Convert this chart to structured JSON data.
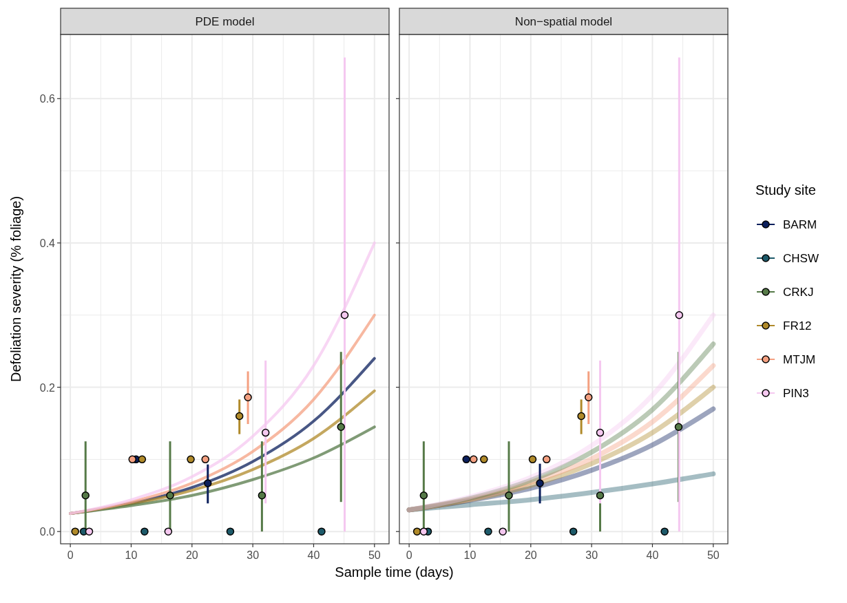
{
  "chart_data": [
    {
      "type": "scatter",
      "title": "PDE model",
      "xlabel": "Sample time (days)",
      "ylabel": "Defoliation severity (% foliage)",
      "xlim": [
        -1.6,
        52.4
      ],
      "ylim": [
        -0.017,
        0.689
      ],
      "xticks": [
        0,
        10,
        20,
        30,
        40,
        50
      ],
      "yticks": [
        {
          "value": 0,
          "label": "0.0"
        },
        0.2,
        0.4,
        0.6
      ],
      "grid": true,
      "marker": "circle",
      "series": [
        {
          "type": "line",
          "marker": "none",
          "color": "#0b1f5c",
          "x": [
            0,
            10,
            20,
            30,
            40,
            50
          ],
          "values": [
            0.025,
            0.039,
            0.061,
            0.097,
            0.153,
            0.24
          ]
        },
        {
          "type": "line",
          "marker": "none",
          "color": "#b08a2a",
          "x": [
            0,
            10,
            20,
            30,
            40,
            50
          ],
          "values": [
            0.025,
            0.038,
            0.057,
            0.086,
            0.129,
            0.195
          ]
        },
        {
          "type": "line",
          "marker": "none",
          "color": "#567a48",
          "x": [
            0,
            10,
            20,
            30,
            40,
            50
          ],
          "values": [
            0.025,
            0.036,
            0.05,
            0.072,
            0.102,
            0.145
          ]
        },
        {
          "type": "line",
          "marker": "none",
          "color": "#f4a081",
          "x": [
            0,
            10,
            20,
            30,
            40,
            50
          ],
          "values": [
            0.025,
            0.041,
            0.067,
            0.111,
            0.183,
            0.3
          ]
        },
        {
          "type": "line",
          "marker": "none",
          "color": "#f5c8f0",
          "x": [
            0,
            10,
            20,
            30,
            40,
            50
          ],
          "values": [
            0.025,
            0.044,
            0.076,
            0.132,
            0.23,
            0.4
          ]
        },
        {
          "color": "#0b1f5c",
          "x": [
            10.8,
            22.6
          ],
          "values": [
            0.1,
            0.067
          ],
          "errors": [
            null,
            [
              0.039,
              0.093
            ]
          ]
        },
        {
          "color": "#1d5a6a",
          "x": [
            2.2,
            12.2,
            26.3,
            41.3
          ],
          "values": [
            0,
            0,
            0,
            0
          ]
        },
        {
          "color": "#567a48",
          "x": [
            2.5,
            16.4,
            31.5,
            44.5
          ],
          "values": [
            0.05,
            0.05,
            0.05,
            0.145
          ],
          "errors": [
            [
              0,
              0.125
            ],
            [
              0,
              0.125
            ],
            [
              0,
              0.125
            ],
            [
              0.041,
              0.249
            ]
          ]
        },
        {
          "color": "#b08a2a",
          "x": [
            0.8,
            11.8,
            19.8,
            27.8
          ],
          "values": [
            0,
            0.1,
            0.1,
            0.16
          ],
          "errors": [
            null,
            null,
            null,
            [
              0.135,
              0.183
            ]
          ]
        },
        {
          "color": "#f4a081",
          "x": [
            10.2,
            22.2,
            29.2
          ],
          "values": [
            0.1,
            0.1,
            0.186
          ],
          "errors": [
            null,
            null,
            [
              0.149,
              0.222
            ]
          ]
        },
        {
          "color": "#f5c8f0",
          "x": [
            3.1,
            16.1,
            32.1,
            45.1
          ],
          "values": [
            0,
            0,
            0.137,
            0.3
          ],
          "errors": [
            null,
            null,
            [
              0.039,
              0.237
            ],
            [
              0,
              0.657
            ]
          ]
        }
      ]
    },
    {
      "type": "scatter",
      "title": "Non−spatial model",
      "legend_title": "Study site",
      "legend": "right",
      "tick_labels": "x",
      "xlim": [
        -1.6,
        52.4
      ],
      "ylim": [
        -0.017,
        0.689
      ],
      "xticks": [
        0,
        10,
        20,
        30,
        40,
        50
      ],
      "yticks": [
        0,
        0.2,
        0.4,
        0.6
      ],
      "grid": true,
      "marker": "circle",
      "series": [
        {
          "type": "line",
          "marker": "none",
          "color": "#1d5a6a",
          "x": [
            0,
            10,
            20,
            30,
            40,
            50
          ],
          "values": [
            0.03,
            0.037,
            0.044,
            0.054,
            0.066,
            0.08
          ]
        },
        {
          "type": "line",
          "marker": "none",
          "color": "#0b1f5c",
          "x": [
            0,
            10,
            20,
            30,
            40,
            50
          ],
          "values": [
            0.03,
            0.043,
            0.06,
            0.085,
            0.12,
            0.17
          ]
        },
        {
          "type": "line",
          "marker": "none",
          "color": "#b08a2a",
          "x": [
            0,
            10,
            20,
            30,
            40,
            50
          ],
          "values": [
            0.03,
            0.044,
            0.064,
            0.094,
            0.137,
            0.2
          ]
        },
        {
          "type": "line",
          "marker": "none",
          "color": "#f4a081",
          "x": [
            0,
            10,
            20,
            30,
            40,
            50
          ],
          "values": [
            0.03,
            0.045,
            0.068,
            0.101,
            0.152,
            0.23
          ]
        },
        {
          "type": "line",
          "marker": "none",
          "color": "#567a48",
          "x": [
            0,
            10,
            20,
            30,
            40,
            50
          ],
          "values": [
            0.03,
            0.046,
            0.071,
            0.11,
            0.169,
            0.26
          ]
        },
        {
          "type": "line",
          "marker": "none",
          "color": "#f5c8f0",
          "x": [
            0,
            10,
            20,
            30,
            40,
            50
          ],
          "values": [
            0.03,
            0.048,
            0.075,
            0.119,
            0.189,
            0.3
          ]
        },
        {
          "name": "BARM",
          "color": "#0b1f5c",
          "x": [
            9.4,
            21.5
          ],
          "values": [
            0.1,
            0.067
          ],
          "errors": [
            null,
            [
              0.039,
              0.094
            ]
          ]
        },
        {
          "name": "CHSW",
          "color": "#1d5a6a",
          "x": [
            3.1,
            13.0,
            27.0,
            42.0
          ],
          "values": [
            0,
            0,
            0,
            0
          ]
        },
        {
          "name": "CRKJ",
          "color": "#567a48",
          "x": [
            2.4,
            16.4,
            31.4,
            44.3
          ],
          "values": [
            0.05,
            0.05,
            0.05,
            0.145
          ],
          "errors": [
            [
              0,
              0.125
            ],
            [
              0,
              0.125
            ],
            [
              0,
              0.125
            ],
            [
              0.041,
              0.249
            ]
          ]
        },
        {
          "name": "FR12",
          "color": "#b08a2a",
          "x": [
            1.3,
            12.3,
            20.3,
            28.3
          ],
          "values": [
            0,
            0.1,
            0.1,
            0.16
          ],
          "errors": [
            null,
            null,
            null,
            [
              0.135,
              0.183
            ]
          ]
        },
        {
          "name": "MTJM",
          "color": "#f4a081",
          "x": [
            10.6,
            22.6,
            29.5
          ],
          "values": [
            0.1,
            0.1,
            0.186
          ],
          "errors": [
            null,
            null,
            [
              0.149,
              0.222
            ]
          ]
        },
        {
          "name": "PIN3",
          "color": "#f5c8f0",
          "x": [
            2.4,
            15.4,
            31.4,
            44.4
          ],
          "values": [
            0,
            0,
            0.137,
            0.3
          ],
          "errors": [
            null,
            null,
            [
              0.039,
              0.237
            ],
            [
              0,
              0.657
            ]
          ]
        }
      ]
    }
  ]
}
